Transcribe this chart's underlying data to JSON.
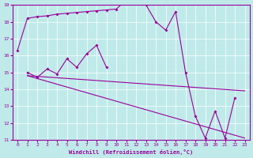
{
  "xlabel": "Windchill (Refroidissement éolien,°C)",
  "xlim": [
    -0.5,
    23.5
  ],
  "ylim": [
    11,
    19
  ],
  "yticks": [
    11,
    12,
    13,
    14,
    15,
    16,
    17,
    18,
    19
  ],
  "xticks": [
    0,
    1,
    2,
    3,
    4,
    5,
    6,
    7,
    8,
    9,
    10,
    11,
    12,
    13,
    14,
    15,
    16,
    17,
    18,
    19,
    20,
    21,
    22,
    23
  ],
  "background_color": "#c0eaea",
  "grid_color": "#aadddd",
  "line_color": "#990099",
  "line1_x": [
    0,
    1,
    2,
    3,
    4,
    5,
    6,
    7,
    8,
    9,
    10,
    11,
    12,
    13,
    14,
    15,
    16,
    17,
    18,
    19,
    20,
    21,
    22
  ],
  "line1_y": [
    16.3,
    18.2,
    18.3,
    18.35,
    18.45,
    18.5,
    18.55,
    18.6,
    18.65,
    18.7,
    18.75,
    19.3,
    19.1,
    19.0,
    18.0,
    17.5,
    18.6,
    15.0,
    12.4,
    11.1,
    12.7,
    11.1,
    13.5
  ],
  "line2_x": [
    1,
    2,
    3,
    4,
    5,
    6,
    7,
    8,
    9
  ],
  "line2_y": [
    15.0,
    14.7,
    15.2,
    14.9,
    15.8,
    15.3,
    16.1,
    16.6,
    15.3
  ],
  "line3_x": [
    1,
    23
  ],
  "line3_y": [
    14.8,
    13.9
  ],
  "line4_x": [
    1,
    23
  ],
  "line4_y": [
    14.8,
    11.1
  ]
}
